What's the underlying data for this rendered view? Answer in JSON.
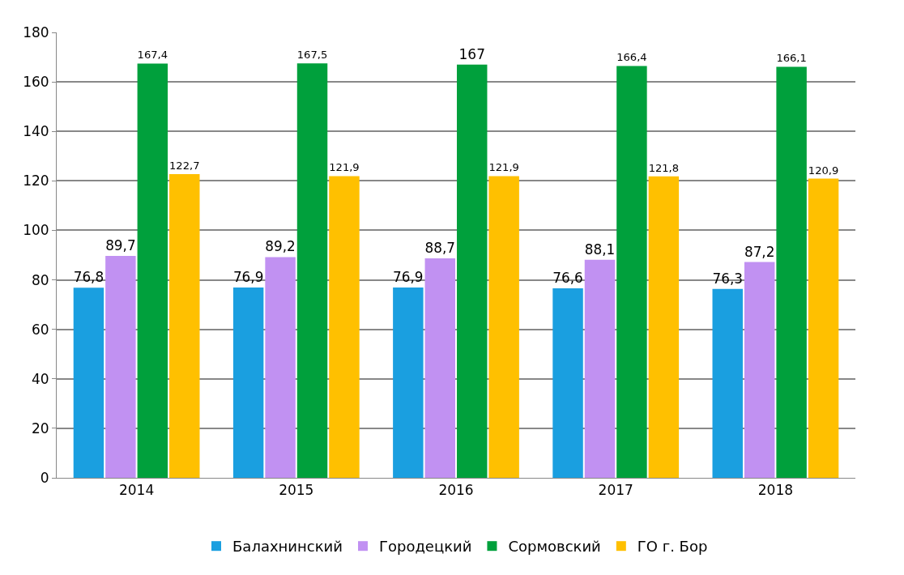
{
  "chart_data": {
    "type": "bar",
    "categories": [
      "2014",
      "2015",
      "2016",
      "2017",
      "2018"
    ],
    "series": [
      {
        "name": "Балахнинский",
        "color": "#1a9fe0",
        "values": [
          76.8,
          76.9,
          76.9,
          76.6,
          76.3
        ],
        "value_labels": [
          "76,8",
          "76,9",
          "76,9",
          "76,6",
          "76,3"
        ]
      },
      {
        "name": "Городецкий",
        "color": "#c191f2",
        "values": [
          89.7,
          89.2,
          88.7,
          88.1,
          87.2
        ],
        "value_labels": [
          "89,7",
          "89,2",
          "88,7",
          "88,1",
          "87,2"
        ]
      },
      {
        "name": "Сормовский",
        "color": "#00a03c",
        "values": [
          167.4,
          167.5,
          167,
          166.4,
          166.1
        ],
        "value_labels": [
          "167,4",
          "167,5",
          "167",
          "166,4",
          "166,1"
        ]
      },
      {
        "name": "ГО г. Бор",
        "color": "#ffc000",
        "values": [
          122.7,
          121.9,
          121.9,
          121.8,
          120.9
        ],
        "value_labels": [
          "122,7",
          "121,9",
          "121,9",
          "121,8",
          "120,9"
        ]
      }
    ],
    "ylim": [
      0,
      180
    ],
    "yticks": [
      0,
      20,
      40,
      60,
      80,
      100,
      120,
      140,
      160,
      180
    ],
    "grid": "y",
    "legend": "bottom"
  }
}
